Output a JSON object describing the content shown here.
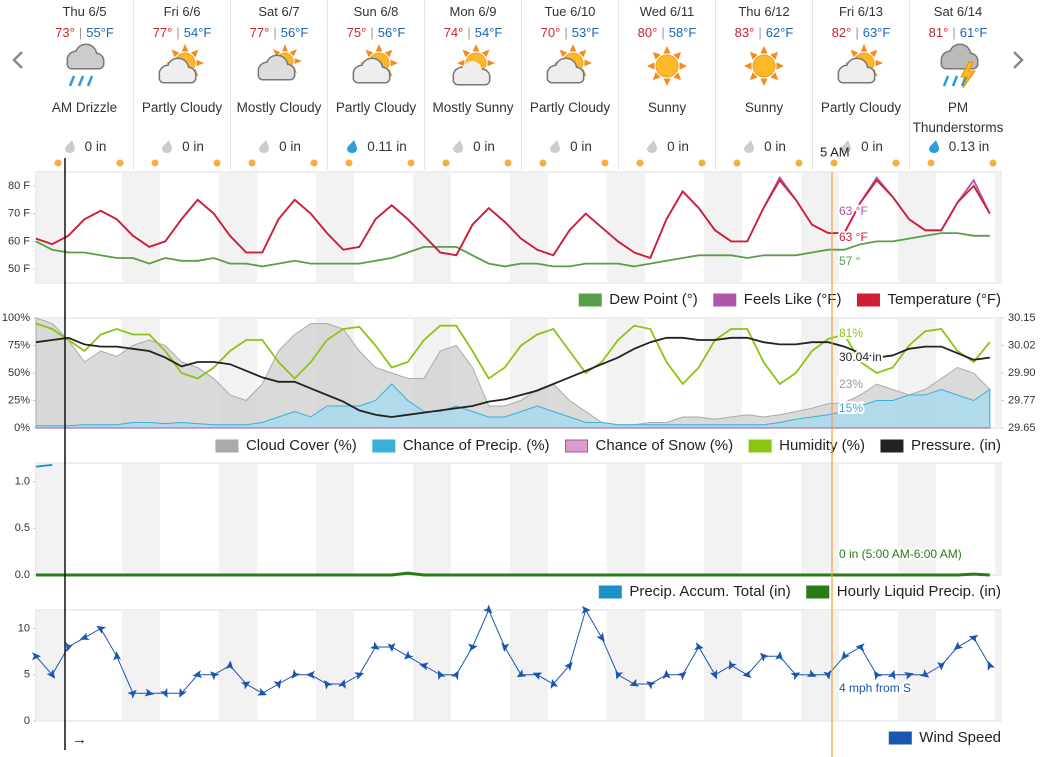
{
  "days": [
    {
      "name": "Thu 6/5",
      "high": "73°",
      "low": "55°F",
      "condition": "AM Drizzle",
      "precip": "0 in"
    },
    {
      "name": "Fri 6/6",
      "high": "77°",
      "low": "54°F",
      "condition": "Partly Cloudy",
      "precip": "0 in"
    },
    {
      "name": "Sat 6/7",
      "high": "77°",
      "low": "56°F",
      "condition": "Mostly Cloudy",
      "precip": "0 in"
    },
    {
      "name": "Sun 6/8",
      "high": "75°",
      "low": "56°F",
      "condition": "Partly Cloudy",
      "precip": "0.11 in"
    },
    {
      "name": "Mon 6/9",
      "high": "74°",
      "low": "54°F",
      "condition": "Mostly Sunny",
      "precip": "0 in"
    },
    {
      "name": "Tue 6/10",
      "high": "70°",
      "low": "53°F",
      "condition": "Partly Cloudy",
      "precip": "0 in"
    },
    {
      "name": "Wed 6/11",
      "high": "80°",
      "low": "58°F",
      "condition": "Sunny",
      "precip": "0 in"
    },
    {
      "name": "Thu 6/12",
      "high": "83°",
      "low": "62°F",
      "condition": "Sunny",
      "precip": "0 in"
    },
    {
      "name": "Fri 6/13",
      "high": "82°",
      "low": "63°F",
      "condition": "Partly Cloudy",
      "precip": "0 in"
    },
    {
      "name": "Sat 6/14",
      "high": "81°",
      "low": "61°F",
      "condition": "PM Thunderstorms",
      "precip": "0.13 in"
    }
  ],
  "temp_separator": "|",
  "cursor_time": "5 AM",
  "scroll_arrow": "→",
  "chart_data": [
    {
      "type": "line",
      "ylim": [
        45,
        85
      ],
      "yticks": [
        {
          "value": 80,
          "label": "80 F"
        },
        {
          "value": 70,
          "label": "70 F"
        },
        {
          "value": 60,
          "label": "60 F"
        },
        {
          "value": 50,
          "label": "50 F"
        }
      ],
      "categories": [
        null,
        null,
        null,
        null,
        null,
        null,
        null,
        null,
        null,
        null,
        null,
        null,
        null,
        null,
        null,
        null,
        null,
        null,
        null,
        null,
        null,
        null,
        null,
        null,
        null,
        null,
        null,
        null,
        null,
        null,
        null,
        null,
        null,
        null,
        null,
        null,
        null,
        null,
        null,
        null,
        null,
        null,
        null,
        null,
        null,
        null,
        null,
        null,
        null,
        null,
        null,
        null,
        null,
        null,
        null,
        null,
        null,
        null,
        null,
        null
      ],
      "series": [
        {
          "name": "Dew Point (°)",
          "color": "#5a9e48",
          "values": [
            60,
            57,
            56,
            56,
            55,
            54,
            54,
            52,
            54,
            53,
            53,
            54,
            52,
            52,
            51,
            52,
            53,
            52,
            52,
            52,
            52,
            53,
            54,
            56,
            58,
            58,
            58,
            55,
            52,
            51,
            52,
            52,
            51,
            51,
            52,
            52,
            52,
            51,
            52,
            53,
            54,
            55,
            55,
            55,
            54,
            55,
            55,
            55,
            56,
            57,
            57,
            59,
            60,
            60,
            61,
            62,
            63,
            63,
            62,
            62
          ]
        },
        {
          "name": "Feels Like (°F)",
          "color": "#b056a8",
          "values": [
            61,
            59,
            62,
            68,
            71,
            68,
            62,
            58,
            60,
            68,
            75,
            70,
            62,
            56,
            56,
            68,
            75,
            70,
            63,
            57,
            58,
            68,
            73,
            68,
            62,
            56,
            55,
            66,
            72,
            67,
            61,
            57,
            55,
            64,
            70,
            65,
            60,
            56,
            54,
            68,
            78,
            72,
            64,
            60,
            60,
            72,
            83,
            75,
            66,
            63,
            63,
            74,
            83,
            76,
            68,
            64,
            64,
            74,
            82,
            70
          ]
        },
        {
          "name": "Temperature (°F)",
          "color": "#cf1f35",
          "values": [
            61,
            59,
            62,
            68,
            71,
            68,
            62,
            58,
            60,
            68,
            75,
            70,
            62,
            56,
            56,
            68,
            75,
            70,
            63,
            57,
            58,
            68,
            73,
            68,
            62,
            56,
            55,
            66,
            72,
            67,
            61,
            57,
            55,
            64,
            70,
            65,
            60,
            56,
            54,
            68,
            78,
            72,
            64,
            60,
            60,
            72,
            82,
            75,
            66,
            63,
            63,
            74,
            82,
            76,
            68,
            64,
            64,
            74,
            80,
            70
          ]
        }
      ],
      "annotations": [
        {
          "text": "63 °F",
          "color": "#b056a8"
        },
        {
          "text": "63 °F",
          "color": "#cf1f35"
        },
        {
          "text": "57 °",
          "color": "#5a9e48"
        }
      ]
    },
    {
      "type": "line",
      "ylim": [
        0,
        100
      ],
      "y2lim": [
        29.65,
        30.15
      ],
      "yticks": [
        {
          "value": 100,
          "label": "100%"
        },
        {
          "value": 75,
          "label": "75%"
        },
        {
          "value": 50,
          "label": "50%"
        },
        {
          "value": 25,
          "label": "25%"
        },
        {
          "value": 0,
          "label": "0%"
        }
      ],
      "y2ticks": [
        30.15,
        {
          "value": 30.025,
          "label": "30.02"
        },
        {
          "value": 29.9,
          "label": "29.90"
        },
        {
          "value": 29.775,
          "label": "29.77"
        },
        29.65
      ],
      "categories": [
        null,
        null,
        null,
        null,
        null,
        null,
        null,
        null,
        null,
        null,
        null,
        null,
        null,
        null,
        null,
        null,
        null,
        null,
        null,
        null,
        null,
        null,
        null,
        null,
        null,
        null,
        null,
        null,
        null,
        null,
        null,
        null,
        null,
        null,
        null,
        null,
        null,
        null,
        null,
        null,
        null,
        null,
        null,
        null,
        null,
        null,
        null,
        null,
        null,
        null,
        null,
        null,
        null,
        null,
        null,
        null,
        null,
        null,
        null,
        null
      ],
      "series": [
        {
          "name": "Cloud Cover (%)",
          "color": "#aaaaaa",
          "fill": "#d4d4d4",
          "area": true,
          "values": [
            100,
            95,
            80,
            60,
            70,
            65,
            75,
            80,
            75,
            60,
            55,
            45,
            30,
            25,
            40,
            70,
            85,
            95,
            95,
            90,
            70,
            55,
            50,
            45,
            45,
            70,
            75,
            55,
            20,
            20,
            25,
            35,
            40,
            25,
            15,
            5,
            3,
            3,
            5,
            5,
            10,
            10,
            8,
            10,
            12,
            10,
            12,
            15,
            18,
            22,
            23,
            30,
            40,
            35,
            30,
            35,
            45,
            55,
            50,
            35
          ]
        },
        {
          "name": "Chance of Precip. (%)",
          "color": "#3ab0d8",
          "fill": "#a9d9ec",
          "area": true,
          "values": [
            2,
            2,
            2,
            3,
            3,
            3,
            5,
            5,
            4,
            5,
            4,
            3,
            3,
            3,
            5,
            10,
            15,
            10,
            20,
            20,
            20,
            25,
            40,
            25,
            15,
            15,
            20,
            15,
            10,
            10,
            15,
            20,
            15,
            10,
            5,
            5,
            3,
            3,
            3,
            3,
            3,
            3,
            3,
            3,
            3,
            3,
            5,
            8,
            10,
            12,
            15,
            20,
            25,
            25,
            30,
            30,
            35,
            30,
            25,
            35
          ]
        },
        {
          "name": "Chance of Snow (%)",
          "color": "#9c5aa0",
          "fill": "#dc9ccc",
          "area": true,
          "values": [
            0,
            0,
            0,
            0,
            0,
            0,
            0,
            0,
            0,
            0,
            0,
            0,
            0,
            0,
            0,
            0,
            0,
            0,
            0,
            0,
            0,
            0,
            0,
            0,
            0,
            0,
            0,
            0,
            0,
            0,
            0,
            0,
            0,
            0,
            0,
            0,
            0,
            0,
            0,
            0,
            0,
            0,
            0,
            0,
            0,
            0,
            0,
            0,
            0,
            0,
            0,
            0,
            0,
            0,
            0,
            0,
            0,
            0,
            0,
            0
          ]
        },
        {
          "name": "Humidity (%)",
          "color": "#8cc414",
          "values": [
            95,
            90,
            80,
            70,
            85,
            90,
            85,
            85,
            70,
            50,
            45,
            55,
            70,
            80,
            80,
            60,
            45,
            60,
            80,
            90,
            92,
            75,
            55,
            60,
            80,
            93,
            93,
            70,
            45,
            55,
            75,
            85,
            90,
            70,
            50,
            60,
            80,
            93,
            90,
            60,
            40,
            55,
            80,
            90,
            90,
            60,
            40,
            50,
            70,
            81,
            85,
            60,
            50,
            55,
            75,
            88,
            90,
            70,
            60,
            78
          ]
        },
        {
          "name": "Pressure. (in)",
          "color": "#222222",
          "axis": "y2",
          "values": [
            30.04,
            30.05,
            30.06,
            30.03,
            30.02,
            30.02,
            30.01,
            30.0,
            29.97,
            29.93,
            29.95,
            29.95,
            29.94,
            29.91,
            29.88,
            29.86,
            29.86,
            29.83,
            29.8,
            29.77,
            29.73,
            29.71,
            29.7,
            29.71,
            29.72,
            29.73,
            29.74,
            29.75,
            29.77,
            29.78,
            29.8,
            29.82,
            29.85,
            29.88,
            29.91,
            29.94,
            29.97,
            30.01,
            30.04,
            30.06,
            30.06,
            30.05,
            30.05,
            30.06,
            30.06,
            30.04,
            30.03,
            30.03,
            30.04,
            30.04,
            30.02,
            29.99,
            29.97,
            29.98,
            30.01,
            30.02,
            30.02,
            29.99,
            29.96,
            29.97
          ]
        }
      ],
      "annotations": [
        {
          "text": "81%",
          "color": "#8cc414"
        },
        {
          "text": "30.04 in",
          "color": "#222222"
        },
        {
          "text": "23%",
          "color": "#999999"
        },
        {
          "text": "15%",
          "color": "#3ab0d8"
        }
      ]
    },
    {
      "type": "line",
      "ylim": [
        0,
        1.2
      ],
      "yticks": [
        {
          "value": 1,
          "label": "1.0"
        },
        0.5,
        {
          "value": 0,
          "label": "0.0"
        }
      ],
      "categories": [
        null,
        null,
        null,
        null,
        null,
        null,
        null,
        null,
        null,
        null,
        null,
        null,
        null,
        null,
        null,
        null,
        null,
        null,
        null,
        null,
        null,
        null,
        null,
        null,
        null,
        null,
        null,
        null,
        null,
        null,
        null,
        null,
        null,
        null,
        null,
        null,
        null,
        null,
        null,
        null,
        null,
        null,
        null,
        null,
        null,
        null,
        null,
        null,
        null,
        null,
        null,
        null,
        null,
        null,
        null,
        null,
        null,
        null,
        null,
        null
      ],
      "series": [
        {
          "name": "Precip. Accum. Total (in)",
          "color": "#1a8fc8",
          "values": [
            1.16,
            1.18,
            null,
            null,
            null,
            null,
            null,
            null,
            null,
            null,
            null,
            null,
            null,
            null,
            null,
            null,
            null,
            null,
            null,
            null,
            null,
            null,
            null,
            null,
            null,
            null,
            null,
            null,
            null,
            null,
            null,
            null,
            null,
            null,
            null,
            null,
            null,
            null,
            null,
            null,
            null,
            null,
            null,
            null,
            null,
            null,
            null,
            null,
            null,
            null,
            null,
            null,
            null,
            null,
            null,
            null,
            null,
            null,
            null,
            null
          ]
        },
        {
          "name": "Hourly Liquid Precip. (in)",
          "color": "#2a7a1a",
          "values": [
            0,
            0,
            0,
            0,
            0,
            0,
            0,
            0,
            0,
            0,
            0,
            0,
            0,
            0,
            0,
            0,
            0,
            0,
            0,
            0,
            0,
            0,
            0,
            0.02,
            0,
            0,
            0,
            0,
            0,
            0,
            0,
            0,
            0,
            0,
            0,
            0,
            0,
            0,
            0,
            0,
            0,
            0,
            0,
            0,
            0,
            0,
            0,
            0,
            0,
            0,
            0,
            0,
            0,
            0,
            0,
            0,
            0,
            0,
            0.01,
            0
          ]
        }
      ],
      "annotations": [
        {
          "text": "0 in (5:00 AM-6:00 AM)",
          "color": "#2a7a1a"
        }
      ]
    },
    {
      "type": "line",
      "ylim": [
        0,
        12
      ],
      "yticks": [
        10,
        5,
        0
      ],
      "marker": "arrow",
      "categories": [
        null,
        null,
        null,
        null,
        null,
        null,
        null,
        null,
        null,
        null,
        null,
        null,
        null,
        null,
        null,
        null,
        null,
        null,
        null,
        null,
        null,
        null,
        null,
        null,
        null,
        null,
        null,
        null,
        null,
        null,
        null,
        null,
        null,
        null,
        null,
        null,
        null,
        null,
        null,
        null,
        null,
        null,
        null,
        null,
        null,
        null,
        null,
        null,
        null,
        null,
        null,
        null,
        null,
        null,
        null,
        null,
        null,
        null,
        null,
        null
      ],
      "series": [
        {
          "name": "Wind Speed",
          "color": "#1a56b0",
          "values": [
            7,
            5,
            8,
            9,
            10,
            7,
            3,
            3,
            3,
            3,
            5,
            5,
            6,
            4,
            3,
            4,
            5,
            5,
            4,
            4,
            5,
            8,
            8,
            7,
            6,
            5,
            5,
            8,
            12,
            8,
            5,
            5,
            4,
            6,
            12,
            9,
            5,
            4,
            4,
            5,
            5,
            8,
            5,
            6,
            5,
            7,
            7,
            5,
            5,
            5,
            7,
            8,
            5,
            5,
            5,
            5,
            6,
            8,
            9,
            6
          ]
        }
      ],
      "annotations": [
        {
          "text": "4 mph from S",
          "color": "#1a56b0"
        }
      ]
    }
  ]
}
